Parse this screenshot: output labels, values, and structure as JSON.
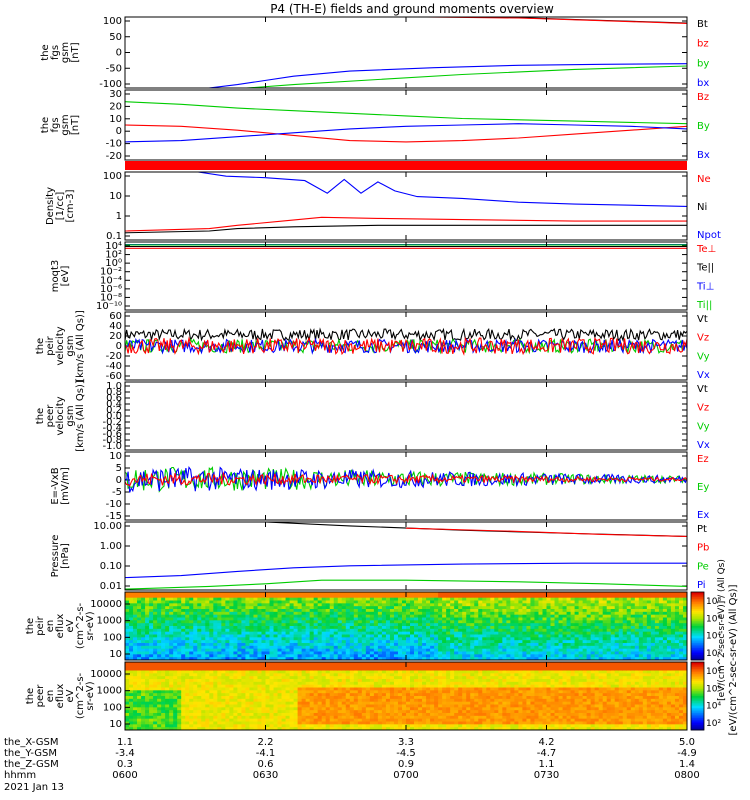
{
  "title": "P4 (TH-E) fields and ground moments overview",
  "chart_data": [
    {
      "type": "line",
      "ylabel": [
        "the",
        "fgs",
        "gsm",
        "[nT]"
      ],
      "yticks": [
        100,
        50,
        0,
        -50,
        -100
      ],
      "ylim": [
        -100,
        110
      ],
      "legend": [
        {
          "label": "Bt",
          "color": "#000000"
        },
        {
          "label": "bz",
          "color": "#ff0000"
        },
        {
          "label": "by",
          "color": "#00cc00"
        },
        {
          "label": "bx",
          "color": "#0000ff"
        }
      ],
      "series": [
        {
          "name": "Bt",
          "color": "#000000",
          "x": [
            0.5,
            0.7,
            0.85,
            1.0
          ],
          "values": [
            112,
            108,
            100,
            92
          ]
        },
        {
          "name": "bz",
          "color": "#ff0000",
          "x": [
            0.5,
            0.7,
            0.85,
            1.0
          ],
          "values": [
            111,
            107,
            99,
            91
          ]
        },
        {
          "name": "by",
          "color": "#00cc00",
          "x": [
            0.1,
            0.2,
            0.3,
            0.45,
            0.6,
            0.8,
            1.0
          ],
          "values": [
            -110,
            -102,
            -90,
            -75,
            -60,
            -45,
            -35
          ]
        },
        {
          "name": "bx",
          "color": "#0000ff",
          "x": [
            0.1,
            0.2,
            0.3,
            0.4,
            0.55,
            0.7,
            0.85,
            1.0
          ],
          "values": [
            -110,
            -90,
            -65,
            -50,
            -40,
            -33,
            -30,
            -28
          ]
        }
      ]
    },
    {
      "type": "line",
      "ylabel": [
        "the",
        "fgs",
        "gsm",
        "[nT]"
      ],
      "yticks": [
        30,
        20,
        10,
        0,
        -10,
        -20
      ],
      "ylim": [
        -24,
        30
      ],
      "legend": [
        {
          "label": "Bz",
          "color": "#ff0000"
        },
        {
          "label": "By",
          "color": "#00cc00"
        },
        {
          "label": "Bx",
          "color": "#0000ff"
        }
      ],
      "series": [
        {
          "name": "Bz",
          "color": "#ff0000",
          "x": [
            0,
            0.1,
            0.2,
            0.3,
            0.4,
            0.5,
            0.6,
            0.7,
            0.8,
            0.9,
            1.0
          ],
          "values": [
            3,
            2,
            -1,
            -5,
            -9,
            -10,
            -9,
            -7,
            -4,
            -1,
            2
          ]
        },
        {
          "name": "By",
          "color": "#00cc00",
          "x": [
            0,
            0.1,
            0.2,
            0.3,
            0.4,
            0.5,
            0.6,
            0.7,
            0.8,
            0.9,
            1.0
          ],
          "values": [
            21,
            19,
            16,
            14,
            12,
            10,
            8,
            7,
            6,
            5,
            4
          ]
        },
        {
          "name": "Bx",
          "color": "#0000ff",
          "x": [
            0,
            0.1,
            0.2,
            0.3,
            0.4,
            0.5,
            0.6,
            0.7,
            0.8,
            0.9,
            1.0
          ],
          "values": [
            -10,
            -9,
            -6,
            -3,
            0,
            2,
            3,
            4,
            3,
            2,
            0
          ]
        }
      ]
    },
    {
      "type": "line",
      "ylabel": [
        "Density",
        "[1/cc]",
        "[cm-3]"
      ],
      "yticks": [
        "100",
        "10",
        "1",
        "0.1"
      ],
      "ylim_log": [
        0.05,
        200
      ],
      "legend": [
        {
          "label": "Ne",
          "color": "#ff0000"
        },
        {
          "label": "Ni",
          "color": "#000000"
        },
        {
          "label": "Npot",
          "color": "#0000ff"
        }
      ],
      "series": [
        {
          "name": "Npot",
          "color": "#0000ff",
          "x": [
            0.13,
            0.18,
            0.25,
            0.32,
            0.36,
            0.39,
            0.42,
            0.45,
            0.48,
            0.52,
            0.6,
            0.7,
            0.8,
            0.9,
            1.0
          ],
          "values": [
            200,
            120,
            100,
            70,
            15,
            80,
            15,
            60,
            20,
            10,
            8,
            5,
            4,
            3.5,
            3
          ]
        },
        {
          "name": "Ne",
          "color": "#ff0000",
          "x": [
            0,
            0.15,
            0.2,
            0.28,
            0.35,
            0.45,
            0.6,
            0.8,
            1.0
          ],
          "values": [
            0.15,
            0.2,
            0.3,
            0.5,
            0.8,
            0.7,
            0.6,
            0.5,
            0.5
          ]
        },
        {
          "name": "Ni",
          "color": "#000000",
          "x": [
            0,
            0.15,
            0.2,
            0.3,
            0.45,
            0.6,
            0.8,
            1.0
          ],
          "values": [
            0.12,
            0.15,
            0.2,
            0.25,
            0.3,
            0.3,
            0.3,
            0.3
          ]
        }
      ]
    },
    {
      "type": "line",
      "ylabel": [
        "moqt3",
        "[eV]"
      ],
      "yticks": [
        "10⁴",
        "10²",
        "10⁰",
        "10⁻²",
        "10⁻⁴",
        "10⁻⁶",
        "10⁻⁸",
        "10⁻¹⁰"
      ],
      "ylim_log": [
        1e-10,
        10000.0
      ],
      "legend": [
        {
          "label": "Te⊥",
          "color": "#ff0000"
        },
        {
          "label": "Te||",
          "color": "#000000"
        },
        {
          "label": "Ti⊥",
          "color": "#0000ff"
        },
        {
          "label": "Ti||",
          "color": "#00cc00"
        }
      ],
      "series": [
        {
          "name": "Te⊥",
          "color": "#ff0000",
          "x": [
            0,
            1
          ],
          "values": [
            500,
            500
          ]
        },
        {
          "name": "Te||",
          "color": "#000000",
          "x": [
            0,
            1
          ],
          "values": [
            1200,
            1200
          ]
        },
        {
          "name": "Ti⊥",
          "color": "#0000ff",
          "x": [
            0,
            1
          ],
          "values": [
            3000,
            3000
          ]
        },
        {
          "name": "Ti||",
          "color": "#00cc00",
          "x": [
            0,
            1
          ],
          "values": [
            2500,
            2500
          ]
        }
      ]
    },
    {
      "type": "line",
      "ylabel": [
        "the",
        "peir",
        "velocity",
        "gsm",
        "[km/s (All Qs)]"
      ],
      "yticks": [
        60,
        40,
        20,
        0,
        -20,
        -40,
        -60
      ],
      "ylim": [
        -60,
        60
      ],
      "noisy": true,
      "legend": [
        {
          "label": "Vt",
          "color": "#000000"
        },
        {
          "label": "Vz",
          "color": "#ff0000"
        },
        {
          "label": "Vy",
          "color": "#00cc00"
        },
        {
          "label": "Vx",
          "color": "#0000ff"
        }
      ],
      "series": [
        {
          "name": "Vt",
          "color": "#000000",
          "center": 20,
          "amp": 10
        },
        {
          "name": "Vy",
          "color": "#00cc00",
          "center": 0,
          "amp": 12
        },
        {
          "name": "Vx",
          "color": "#0000ff",
          "center": 0,
          "amp": 12
        },
        {
          "name": "Vz",
          "color": "#ff0000",
          "center": 0,
          "amp": 14
        }
      ]
    },
    {
      "type": "line",
      "ylabel": [
        "the",
        "peer",
        "velocity",
        "gsm",
        "[km/s (All Qs)]"
      ],
      "yticks": [
        "1.0",
        "0.8",
        "0.6",
        "0.4",
        "0.2",
        "0.0",
        "-0.2",
        "-0.4",
        "-0.6",
        "-0.8",
        "-1.0"
      ],
      "ylim": [
        -1,
        1
      ],
      "legend": [
        {
          "label": "Vt",
          "color": "#000000"
        },
        {
          "label": "Vz",
          "color": "#ff0000"
        },
        {
          "label": "Vy",
          "color": "#00cc00"
        },
        {
          "label": "Vx",
          "color": "#0000ff"
        }
      ],
      "series": []
    },
    {
      "type": "line",
      "ylabel": [
        "E=-VxB",
        "[mV/m]"
      ],
      "yticks": [
        10,
        5,
        0,
        -5,
        -10,
        -15
      ],
      "ylim": [
        -15,
        10
      ],
      "noisy": true,
      "legend": [
        {
          "label": "Ez",
          "color": "#ff0000"
        },
        {
          "label": "Ey",
          "color": "#00cc00"
        },
        {
          "label": "Ex",
          "color": "#0000ff"
        }
      ],
      "series": [
        {
          "name": "Ey",
          "color": "#00cc00",
          "center": 0,
          "amp": 5,
          "decay": true
        },
        {
          "name": "Ex",
          "color": "#0000ff",
          "center": 0,
          "amp": 5,
          "decay": true
        },
        {
          "name": "Ez",
          "color": "#ff0000",
          "center": 0,
          "amp": 2.5,
          "decay": true
        }
      ]
    },
    {
      "type": "line",
      "ylabel": [
        "Pressure",
        "[nPa]"
      ],
      "yticks": [
        "10.00",
        "1.00",
        "0.10",
        "0.01"
      ],
      "ylim_log": [
        0.01,
        20
      ],
      "legend": [
        {
          "label": "Pt",
          "color": "#000000"
        },
        {
          "label": "Pb",
          "color": "#ff0000"
        },
        {
          "label": "Pe",
          "color": "#00cc00"
        },
        {
          "label": "Pi",
          "color": "#0000ff"
        }
      ],
      "series": [
        {
          "name": "Pt",
          "color": "#000000",
          "x": [
            0.25,
            0.4,
            0.6,
            0.8,
            1.0
          ],
          "values": [
            20,
            13,
            8,
            5.5,
            4
          ]
        },
        {
          "name": "Pb",
          "color": "#ff0000",
          "x": [
            0.5,
            0.7,
            0.85,
            1.0
          ],
          "values": [
            10,
            7,
            5,
            4
          ]
        },
        {
          "name": "Pi",
          "color": "#0000ff",
          "x": [
            0,
            0.1,
            0.2,
            0.3,
            0.4,
            0.6,
            0.8,
            1.0
          ],
          "values": [
            0.04,
            0.05,
            0.08,
            0.12,
            0.15,
            0.18,
            0.2,
            0.2
          ]
        },
        {
          "name": "Pe",
          "color": "#00cc00",
          "x": [
            0,
            0.15,
            0.25,
            0.35,
            0.5,
            0.7,
            0.85,
            1.0
          ],
          "values": [
            0.011,
            0.015,
            0.02,
            0.03,
            0.03,
            0.025,
            0.02,
            0.015
          ]
        }
      ]
    },
    {
      "type": "heatmap",
      "ylabel": [
        "the",
        "peir",
        "en",
        "eflux",
        "eV",
        "(cm^2-s-",
        "sr-eV)"
      ],
      "yticks": [
        "10000",
        "1000",
        "100",
        "10"
      ],
      "colorbar_ticks": [
        "10⁸",
        "10⁶",
        "10⁴",
        "10²"
      ],
      "variant": "ion"
    },
    {
      "type": "heatmap",
      "ylabel": [
        "the",
        "peer",
        "en",
        "eflux",
        "eV",
        "(cm^2-s-",
        "sr-eV)"
      ],
      "yticks": [
        "10000",
        "1000",
        "100",
        "10"
      ],
      "colorbar_ticks": [
        "10⁸",
        "10⁶",
        "10⁴",
        "10²"
      ],
      "variant": "electron"
    }
  ],
  "colorbar_label": "[eV/(cm^2-sec-sr-eV)] / (All Qs)",
  "colorbar_label2": "[eV/(cm^2-sec-sr-eV) (All Qs)]",
  "xaxis": {
    "row_labels": [
      "the_X-GSM",
      "the_Y-GSM",
      "the_Z-GSM",
      "hhmm",
      "2021 Jan 13"
    ],
    "ticks": [
      {
        "x": 0.0,
        "vals": [
          "1.1",
          "-3.4",
          "0.3",
          "0600"
        ]
      },
      {
        "x": 0.25,
        "vals": [
          "2.2",
          "-4.1",
          "0.6",
          "0630"
        ]
      },
      {
        "x": 0.5,
        "vals": [
          "3.3",
          "-4.5",
          "0.9",
          "0700"
        ]
      },
      {
        "x": 0.75,
        "vals": [
          "4.2",
          "-4.7",
          "1.1",
          "0730"
        ]
      },
      {
        "x": 1.0,
        "vals": [
          "5.0",
          "-4.9",
          "1.4",
          "0800"
        ]
      }
    ]
  }
}
